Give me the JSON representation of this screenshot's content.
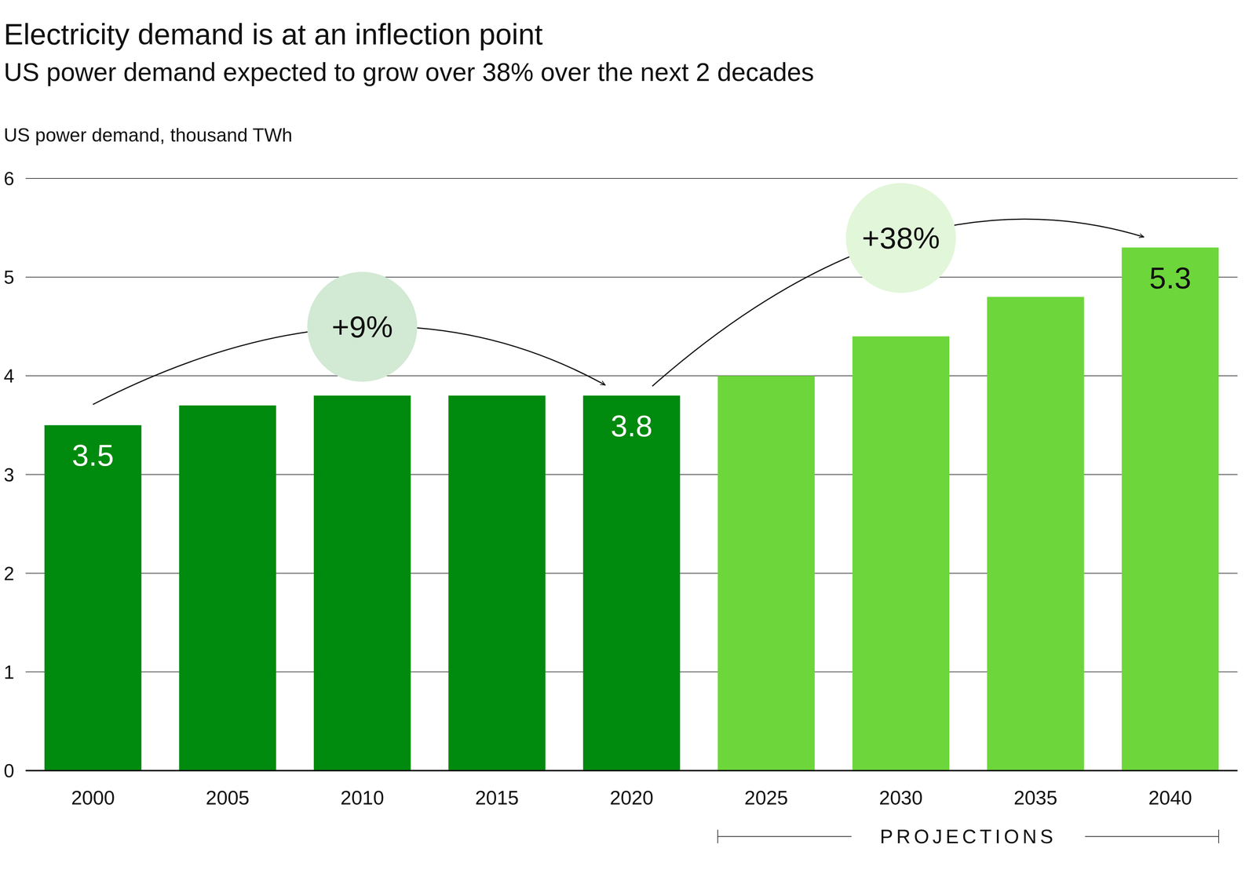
{
  "chart_data": {
    "type": "bar",
    "title": "Electricity demand is at an inflection point",
    "subtitle": "US power demand expected to grow over 38% over the next 2 decades",
    "y_label": "US power demand, thousand TWh",
    "categories": [
      "2000",
      "2005",
      "2010",
      "2015",
      "2020",
      "2025",
      "2030",
      "2035",
      "2040"
    ],
    "values": [
      3.5,
      3.7,
      3.8,
      3.8,
      3.8,
      4.0,
      4.4,
      4.8,
      5.3
    ],
    "colors": [
      "#008a0e",
      "#008a0e",
      "#008a0e",
      "#008a0e",
      "#008a0e",
      "#6dd63b",
      "#6dd63b",
      "#6dd63b",
      "#6dd63b"
    ],
    "data_labels": true,
    "value_labels": [
      "3.5",
      null,
      null,
      null,
      "3.8",
      null,
      null,
      null,
      "5.3"
    ],
    "ylim": [
      0,
      6
    ],
    "yticks": [
      0,
      1,
      2,
      3,
      4,
      5,
      6
    ],
    "grid": true,
    "annotations": [
      {
        "text": "+9%",
        "from": "2000",
        "to": "2020"
      },
      {
        "text": "+38%",
        "from": "2020",
        "to": "2040"
      }
    ],
    "projections": {
      "label": "PROJECTIONS",
      "from": "2025",
      "to": "2040"
    }
  }
}
